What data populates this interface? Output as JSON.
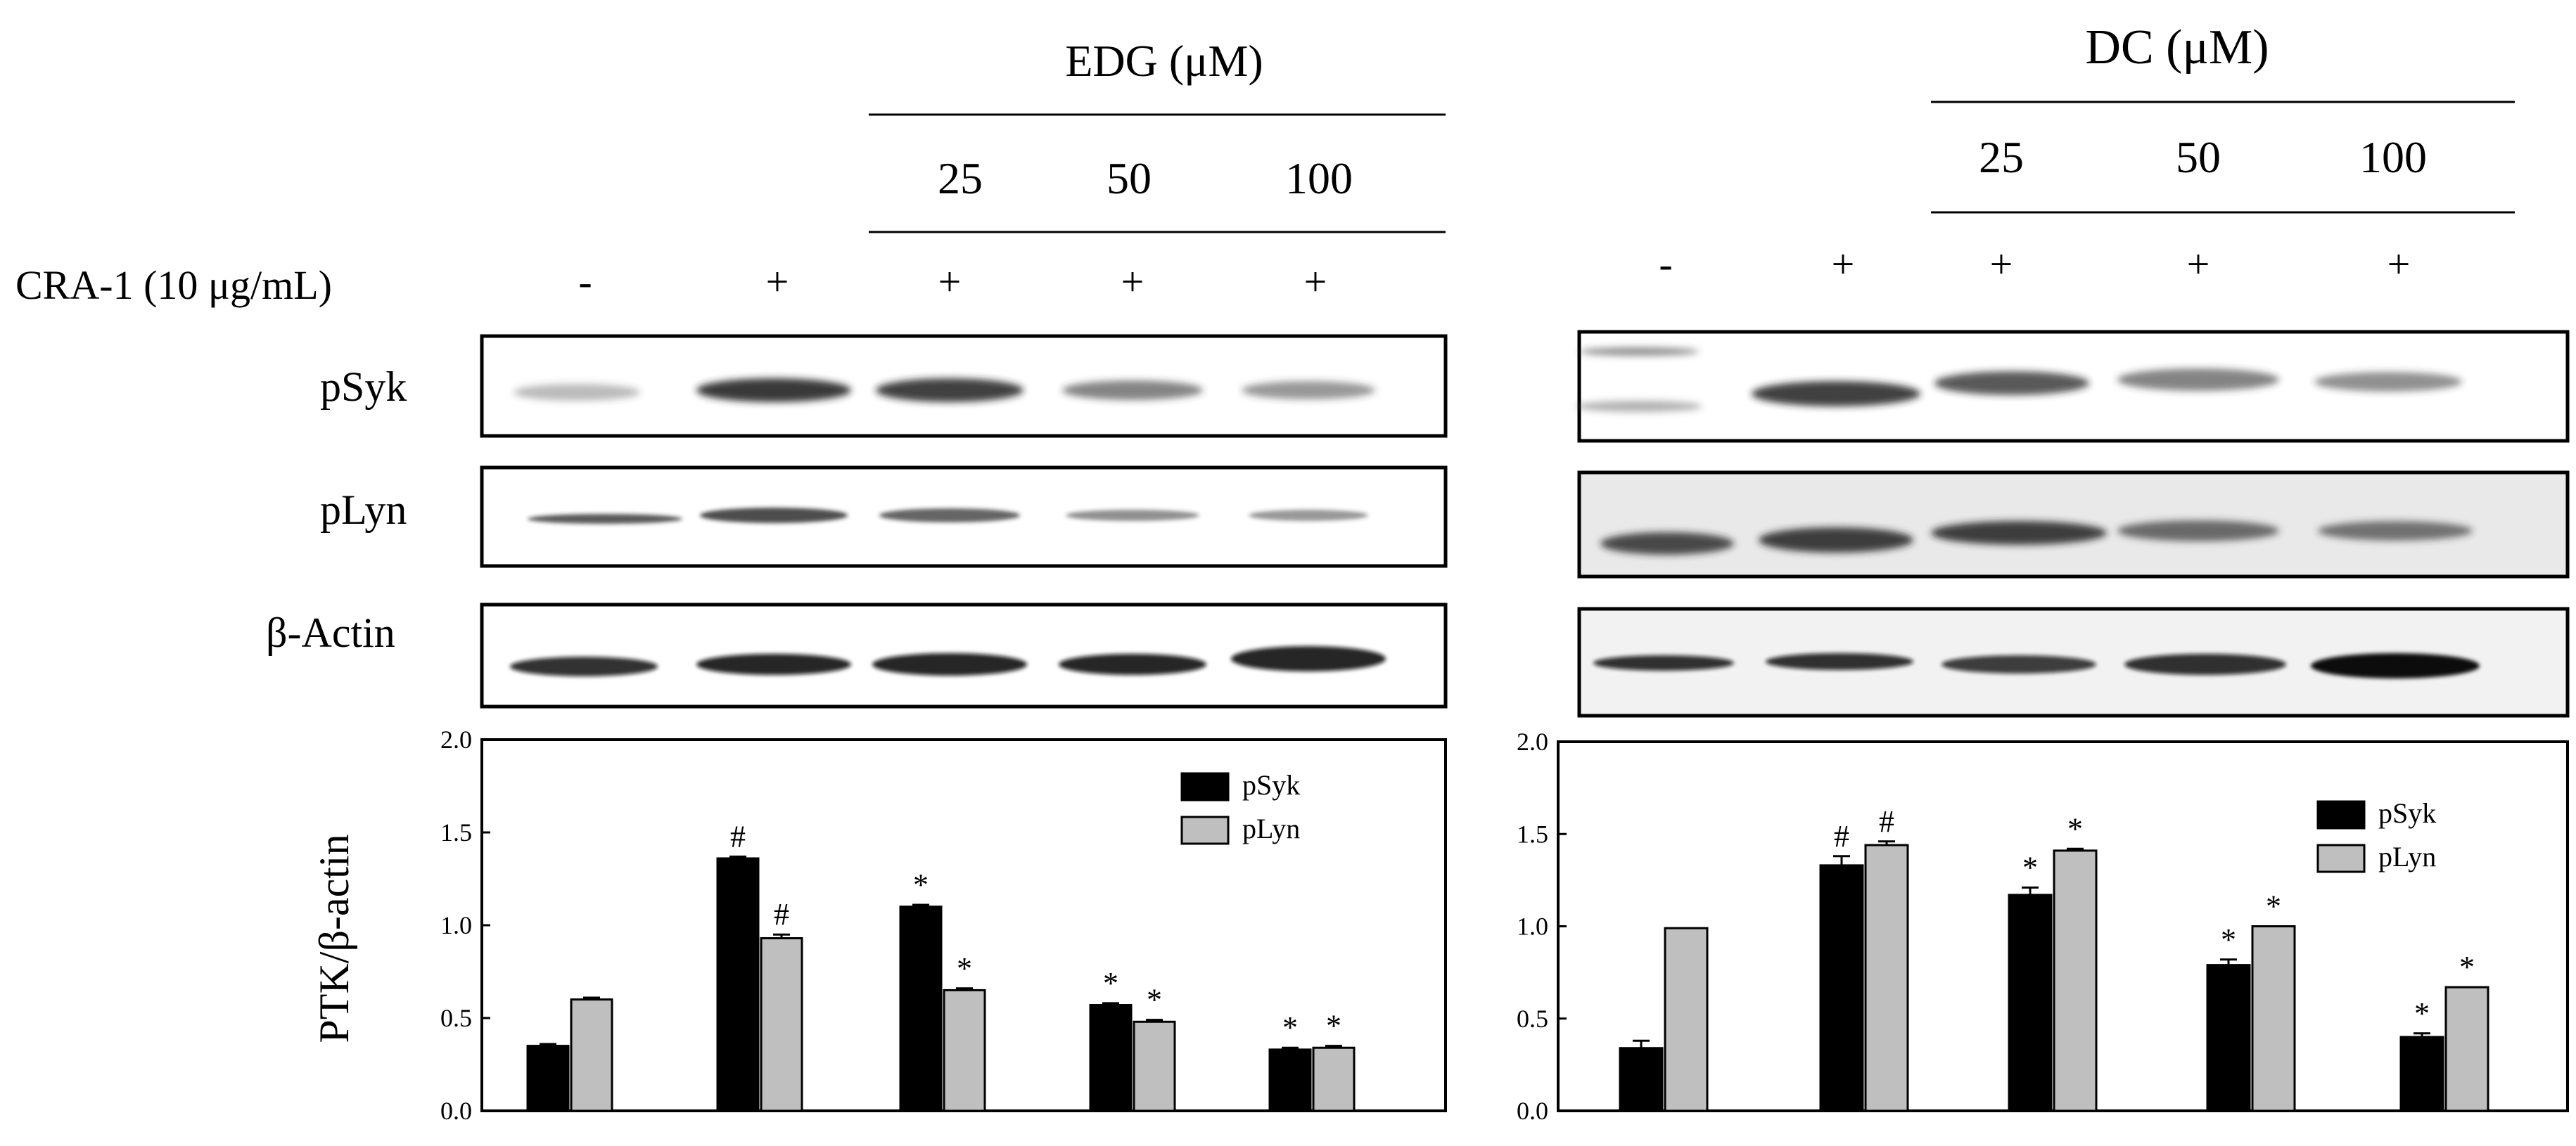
{
  "treatment": {
    "label": "CRA-1 (10 μg/mL)",
    "signs": [
      "-",
      "+",
      "+",
      "+",
      "+"
    ]
  },
  "blot_labels": [
    "pSyk",
    "pLyn",
    "β-Actin"
  ],
  "y_axis_label": "PTK/β-actin",
  "panels": [
    {
      "compound_label": "EDG (μM)",
      "doses": [
        "25",
        "50",
        "100"
      ],
      "chart_data": {
        "type": "bar",
        "categories": [
          "-",
          "+",
          "25",
          "50",
          "100"
        ],
        "ylim": [
          0.0,
          2.0
        ],
        "yticks": [
          "0.0",
          "0.5",
          "1.0",
          "1.5",
          "2.0"
        ],
        "legend_position": "top-right",
        "series": [
          {
            "name": "pSyk",
            "color": "#000000",
            "values": [
              0.35,
              1.36,
              1.1,
              0.57,
              0.33
            ],
            "errors": [
              0.01,
              0.01,
              0.01,
              0.01,
              0.01
            ],
            "marks": [
              "",
              "#",
              "*",
              "*",
              "*"
            ]
          },
          {
            "name": "pLyn",
            "color": "#bfbfbf",
            "values": [
              0.6,
              0.93,
              0.65,
              0.48,
              0.34
            ],
            "errors": [
              0.01,
              0.02,
              0.01,
              0.01,
              0.01
            ],
            "marks": [
              "",
              "#",
              "*",
              "*",
              "*"
            ]
          }
        ]
      }
    },
    {
      "compound_label": "DC (μM)",
      "doses": [
        "25",
        "50",
        "100"
      ],
      "chart_data": {
        "type": "bar",
        "categories": [
          "-",
          "+",
          "25",
          "50",
          "100"
        ],
        "ylim": [
          0.0,
          2.0
        ],
        "yticks": [
          "0.0",
          "0.5",
          "1.0",
          "1.5",
          "2.0"
        ],
        "legend_position": "top-right",
        "series": [
          {
            "name": "pSyk",
            "color": "#000000",
            "values": [
              0.34,
              1.33,
              1.17,
              0.79,
              0.4
            ],
            "errors": [
              0.04,
              0.05,
              0.04,
              0.03,
              0.02
            ],
            "marks": [
              "",
              "#",
              "*",
              "*",
              "*"
            ]
          },
          {
            "name": "pLyn",
            "color": "#bfbfbf",
            "values": [
              0.99,
              1.44,
              1.41,
              1.0,
              0.67
            ],
            "errors": [
              0.0,
              0.02,
              0.01,
              0.0,
              0.0
            ],
            "marks": [
              "",
              "#",
              "*",
              "*",
              "*"
            ]
          }
        ]
      }
    }
  ]
}
